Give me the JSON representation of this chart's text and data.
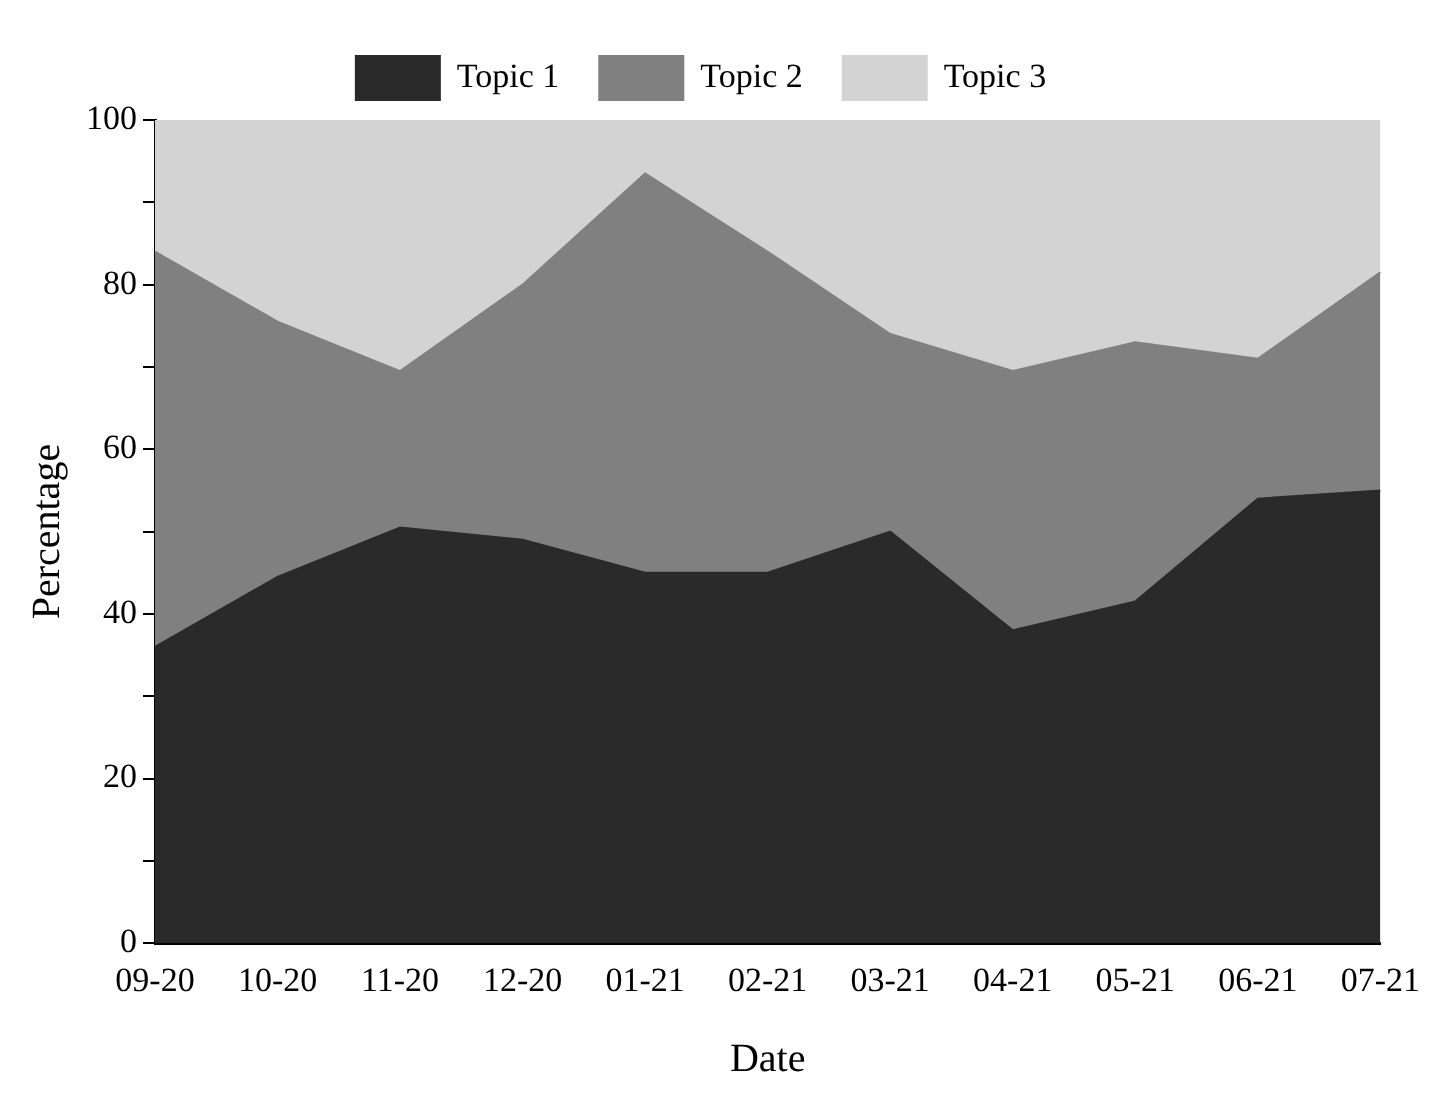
{
  "chart_data": {
    "type": "area",
    "stacked": true,
    "xlabel": "Date",
    "ylabel": "Percentage",
    "categories": [
      "09-20",
      "10-20",
      "11-20",
      "12-20",
      "01-21",
      "02-21",
      "03-21",
      "04-21",
      "05-21",
      "06-21",
      "07-21"
    ],
    "series": [
      {
        "name": "Topic 1",
        "color": "#2a2a2a",
        "values": [
          36,
          44.5,
          50.5,
          49,
          45,
          45,
          50,
          38,
          41.5,
          54,
          55
        ]
      },
      {
        "name": "Topic 2",
        "color": "#808080",
        "values": [
          48,
          31,
          19,
          31,
          48.5,
          39,
          24,
          31.5,
          31.5,
          17,
          26.5
        ]
      },
      {
        "name": "Topic 3",
        "color": "#d3d3d3",
        "values": [
          16,
          24.5,
          30.5,
          20,
          6.5,
          16,
          26,
          30.5,
          27,
          29,
          18.5
        ]
      }
    ],
    "ylim": [
      0,
      100
    ],
    "yticks": [
      0,
      {
        "value": 10,
        "label": null
      },
      20,
      {
        "value": 30,
        "label": null
      },
      40,
      {
        "value": 50,
        "label": null
      },
      60,
      {
        "value": 70,
        "label": null
      },
      80,
      {
        "value": 90,
        "label": null
      },
      100
    ],
    "grid": false,
    "legend": "top"
  }
}
